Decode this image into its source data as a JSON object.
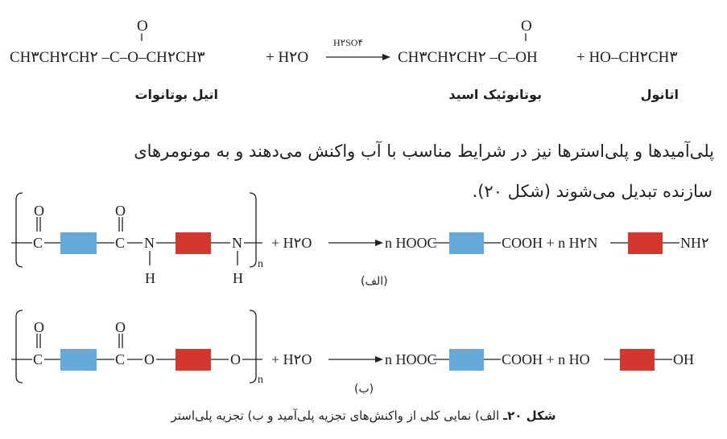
{
  "ester_equation": {
    "reactant": "CH۳CH۲CH۲ –C–O–CH۲CH۳",
    "plus_water": "+ H۲O",
    "catalyst": "H۲SO۴",
    "product_acid": "CH۳CH۲CH۲ –C–OH",
    "product_alcohol": "+ HO–CH۲CH۳",
    "carbonyl_o": "O",
    "labels": {
      "ester": "اتیل بوتانوات",
      "acid": "بوتانوئیک اسید",
      "alcohol": "اتانول"
    }
  },
  "paragraph": {
    "line1": "پلی‌آمیدها و پلی‌استرها نیز در شرایط مناسب با آب واکنش می‌دهند و به مونومرهای",
    "line2": "سازنده تبدیل می‌شوند (شکل ۲۰)."
  },
  "diagram_a": {
    "atoms": {
      "c": "C",
      "o": "O",
      "n": "N",
      "h": "H",
      "sub_n": "n"
    },
    "water": "+ H۲O",
    "prod1_left": "n HOOC",
    "prod1_right": "COOH + n H۲N",
    "prod2_right": "NH۲",
    "label": "(الف)"
  },
  "diagram_b": {
    "atoms": {
      "c": "C",
      "o": "O",
      "sub_n": "n"
    },
    "water": "+ H۲O",
    "prod1_left": "n HOOC",
    "prod1_right": "COOH + n HO",
    "prod2_right": "OH",
    "label": "(ب)"
  },
  "caption": {
    "figure": "شکل ۲۰ـ",
    "text": "الف) نمایی کلی از واکنش‌های تجزیه پلی‌آمید و ب) تجزیه پلی‌استر"
  },
  "colors": {
    "diacid_block": "#64a8dc",
    "diamine_diol_block": "#d3372f"
  }
}
